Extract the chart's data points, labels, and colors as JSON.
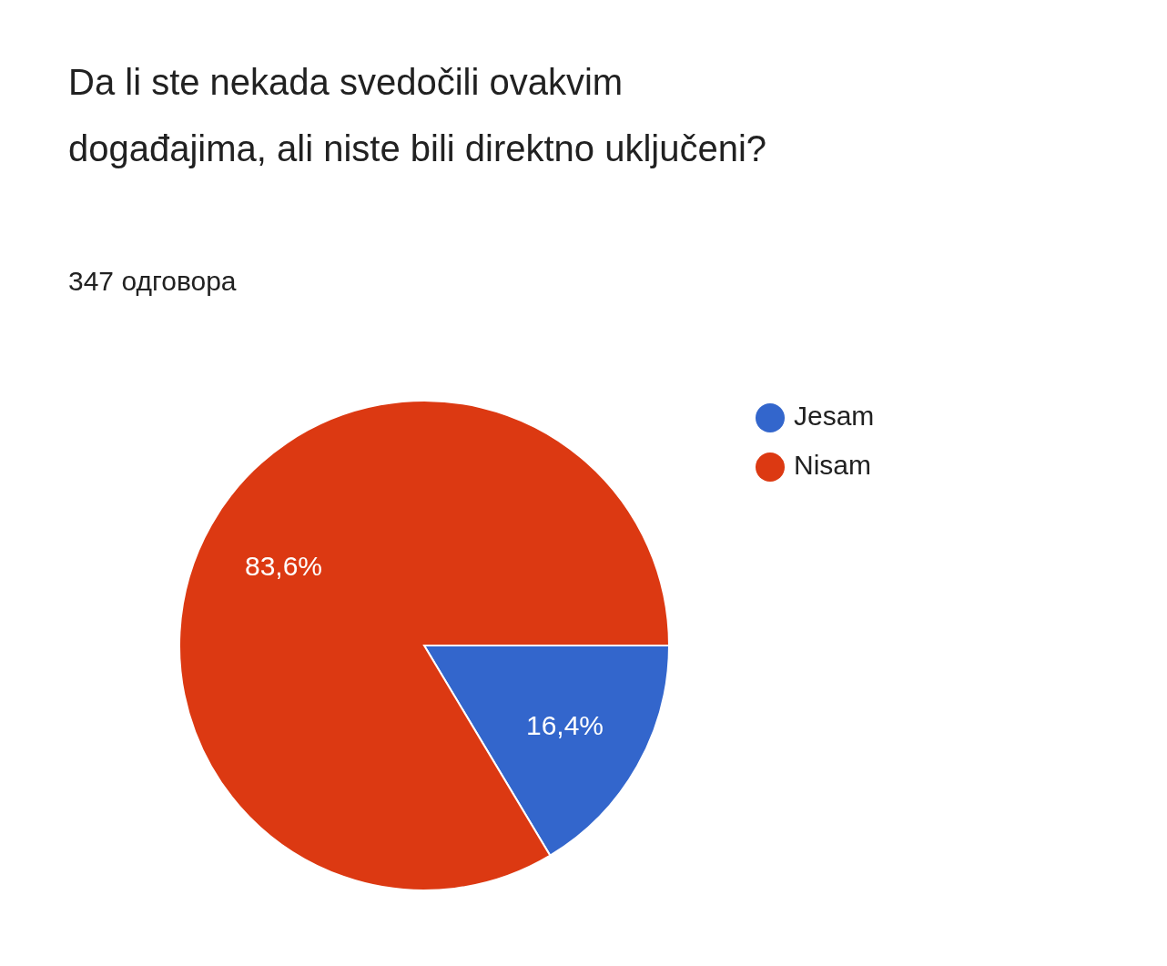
{
  "chart_data": {
    "type": "pie",
    "title": "Da li ste nekada svedočili ovakvim događajima, ali niste bili direktno uključeni?",
    "subtitle": "347 одговора",
    "categories": [
      "Jesam",
      "Nisam"
    ],
    "values": [
      16.4,
      83.6
    ],
    "colors": [
      "#3366cc",
      "#dc3912"
    ],
    "value_labels": [
      "16,4%",
      "83,6%"
    ],
    "legend": "top right"
  }
}
